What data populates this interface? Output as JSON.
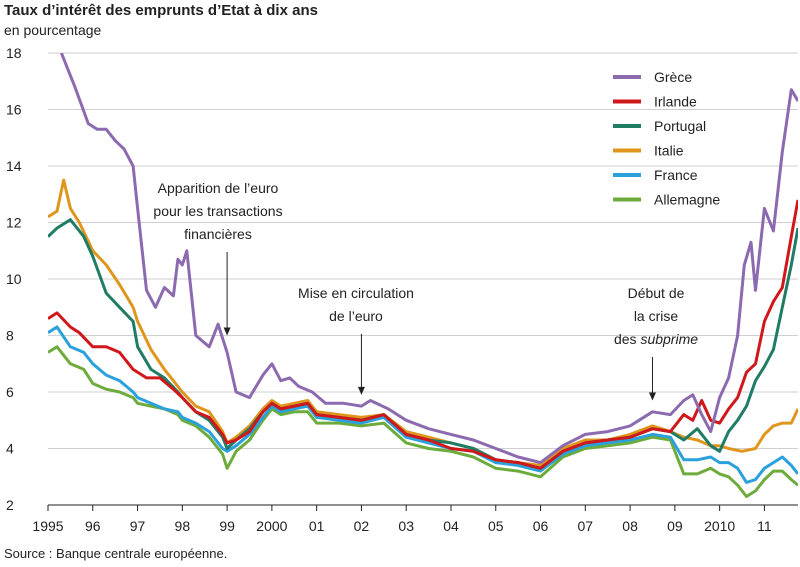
{
  "chart_data": {
    "type": "line",
    "title": "Taux d’intérêt des emprunts d’Etat à dix ans",
    "subtitle": "en pourcentage",
    "source": "Source : Banque centrale européenne.",
    "ylim": [
      2,
      18
    ],
    "xlim": [
      1995,
      2011.75
    ],
    "yticks": [
      2,
      4,
      6,
      8,
      10,
      12,
      14,
      16,
      18
    ],
    "xticks": [
      {
        "x": 1995,
        "label": "1995"
      },
      {
        "x": 1996,
        "label": "96"
      },
      {
        "x": 1997,
        "label": "97"
      },
      {
        "x": 1998,
        "label": "98"
      },
      {
        "x": 1999,
        "label": "99"
      },
      {
        "x": 2000,
        "label": "2000"
      },
      {
        "x": 2001,
        "label": "01"
      },
      {
        "x": 2002,
        "label": "02"
      },
      {
        "x": 2003,
        "label": "03"
      },
      {
        "x": 2004,
        "label": "04"
      },
      {
        "x": 2005,
        "label": "05"
      },
      {
        "x": 2006,
        "label": "06"
      },
      {
        "x": 2007,
        "label": "07"
      },
      {
        "x": 2008,
        "label": "08"
      },
      {
        "x": 2009,
        "label": "09"
      },
      {
        "x": 2010,
        "label": "2010"
      },
      {
        "x": 2011,
        "label": "11"
      }
    ],
    "grid": true,
    "legend_position": "top-right",
    "series": [
      {
        "name": "Grèce",
        "color": "#8b6ab0",
        "x": [
          1995.3,
          1995.6,
          1995.9,
          1996.1,
          1996.3,
          1996.5,
          1996.7,
          1996.9,
          1997.0,
          1997.2,
          1997.4,
          1997.6,
          1997.8,
          1997.9,
          1998.0,
          1998.1,
          1998.3,
          1998.6,
          1998.8,
          1999.0,
          1999.2,
          1999.5,
          1999.8,
          2000.0,
          2000.2,
          2000.4,
          2000.6,
          2000.9,
          2001.2,
          2001.6,
          2002.0,
          2002.2,
          2002.6,
          2003.0,
          2003.5,
          2004.0,
          2004.5,
          2005.0,
          2005.5,
          2006.0,
          2006.5,
          2007.0,
          2007.5,
          2008.0,
          2008.5,
          2008.9,
          2009.2,
          2009.4,
          2009.6,
          2009.8,
          2010.0,
          2010.2,
          2010.4,
          2010.55,
          2010.7,
          2010.8,
          2011.0,
          2011.2,
          2011.4,
          2011.6,
          2011.75
        ],
        "y": [
          18.0,
          16.8,
          15.5,
          15.3,
          15.3,
          14.9,
          14.6,
          14.0,
          12.5,
          9.6,
          9.0,
          9.7,
          9.4,
          10.7,
          10.5,
          11.0,
          8.0,
          7.6,
          8.4,
          7.4,
          6.0,
          5.8,
          6.6,
          7.0,
          6.4,
          6.5,
          6.2,
          6.0,
          5.6,
          5.6,
          5.5,
          5.7,
          5.4,
          5.0,
          4.7,
          4.5,
          4.3,
          4.0,
          3.7,
          3.5,
          4.1,
          4.5,
          4.6,
          4.8,
          5.3,
          5.2,
          5.7,
          5.9,
          5.2,
          4.6,
          5.8,
          6.5,
          8.0,
          10.5,
          11.3,
          9.6,
          12.5,
          11.7,
          14.5,
          16.7,
          16.3
        ]
      },
      {
        "name": "Irlande",
        "color": "#d0171b",
        "x": [
          1995.0,
          1995.2,
          1995.5,
          1995.7,
          1996.0,
          1996.3,
          1996.6,
          1996.9,
          1997.2,
          1997.5,
          1997.8,
          1998.0,
          1998.3,
          1998.6,
          1998.9,
          1999.0,
          1999.2,
          1999.5,
          1999.8,
          2000.0,
          2000.2,
          2000.5,
          2000.8,
          2001.0,
          2001.5,
          2002.0,
          2002.5,
          2003.0,
          2003.5,
          2004.0,
          2004.5,
          2005.0,
          2005.5,
          2006.0,
          2006.5,
          2007.0,
          2007.5,
          2008.0,
          2008.5,
          2008.9,
          2009.2,
          2009.4,
          2009.6,
          2009.8,
          2010.0,
          2010.2,
          2010.4,
          2010.6,
          2010.8,
          2011.0,
          2011.2,
          2011.4,
          2011.6,
          2011.75
        ],
        "y": [
          8.6,
          8.8,
          8.3,
          8.1,
          7.6,
          7.6,
          7.4,
          6.8,
          6.5,
          6.5,
          6.1,
          5.8,
          5.3,
          5.1,
          4.5,
          4.2,
          4.3,
          4.6,
          5.3,
          5.6,
          5.4,
          5.5,
          5.6,
          5.2,
          5.1,
          5.0,
          5.2,
          4.5,
          4.3,
          4.0,
          3.9,
          3.6,
          3.5,
          3.3,
          3.9,
          4.2,
          4.3,
          4.4,
          4.7,
          4.6,
          5.2,
          5.0,
          5.7,
          5.0,
          4.9,
          5.4,
          5.8,
          6.7,
          7.0,
          8.5,
          9.2,
          9.7,
          11.5,
          12.8
        ]
      },
      {
        "name": "Portugal",
        "color": "#1f7c65",
        "x": [
          1995.0,
          1995.2,
          1995.5,
          1995.8,
          1996.0,
          1996.3,
          1996.6,
          1996.9,
          1997.0,
          1997.3,
          1997.6,
          1997.9,
          1998.0,
          1998.3,
          1998.6,
          1998.9,
          1999.0,
          1999.2,
          1999.5,
          1999.8,
          2000.0,
          2000.2,
          2000.5,
          2000.8,
          2001.0,
          2001.5,
          2002.0,
          2002.5,
          2003.0,
          2003.5,
          2004.0,
          2004.5,
          2005.0,
          2005.5,
          2006.0,
          2006.5,
          2007.0,
          2007.5,
          2008.0,
          2008.5,
          2008.9,
          2009.2,
          2009.5,
          2009.8,
          2010.0,
          2010.2,
          2010.4,
          2010.6,
          2010.8,
          2011.0,
          2011.2,
          2011.4,
          2011.6,
          2011.75
        ],
        "y": [
          11.5,
          11.8,
          12.1,
          11.5,
          10.8,
          9.5,
          9.0,
          8.5,
          7.6,
          6.8,
          6.5,
          6.0,
          5.8,
          5.3,
          5.0,
          4.4,
          4.0,
          4.3,
          4.7,
          5.3,
          5.6,
          5.4,
          5.5,
          5.6,
          5.2,
          5.1,
          5.0,
          5.2,
          4.5,
          4.3,
          4.2,
          4.0,
          3.6,
          3.5,
          3.3,
          3.9,
          4.2,
          4.3,
          4.4,
          4.7,
          4.6,
          4.3,
          4.7,
          4.1,
          3.9,
          4.6,
          5.0,
          5.5,
          6.4,
          6.9,
          7.5,
          9.0,
          10.5,
          11.8
        ]
      },
      {
        "name": "Italie",
        "color": "#e0961d",
        "x": [
          1995.0,
          1995.2,
          1995.35,
          1995.5,
          1995.7,
          1996.0,
          1996.3,
          1996.6,
          1996.9,
          1997.0,
          1997.3,
          1997.6,
          1997.9,
          1998.0,
          1998.3,
          1998.6,
          1998.9,
          1999.0,
          1999.2,
          1999.5,
          1999.8,
          2000.0,
          2000.2,
          2000.5,
          2000.8,
          2001.0,
          2001.5,
          2002.0,
          2002.5,
          2003.0,
          2003.5,
          2004.0,
          2004.5,
          2005.0,
          2005.5,
          2006.0,
          2006.5,
          2007.0,
          2007.5,
          2008.0,
          2008.5,
          2008.9,
          2009.2,
          2009.5,
          2009.8,
          2010.0,
          2010.2,
          2010.5,
          2010.8,
          2011.0,
          2011.2,
          2011.4,
          2011.6,
          2011.75
        ],
        "y": [
          12.2,
          12.4,
          13.5,
          12.5,
          12.0,
          11.0,
          10.5,
          9.8,
          9.0,
          8.5,
          7.5,
          6.8,
          6.2,
          6.0,
          5.5,
          5.3,
          4.6,
          4.2,
          4.4,
          4.8,
          5.4,
          5.7,
          5.5,
          5.6,
          5.7,
          5.3,
          5.2,
          5.1,
          5.2,
          4.6,
          4.4,
          4.2,
          4.0,
          3.6,
          3.5,
          3.4,
          4.0,
          4.3,
          4.3,
          4.5,
          4.8,
          4.6,
          4.4,
          4.3,
          4.1,
          4.1,
          4.0,
          3.9,
          4.0,
          4.5,
          4.8,
          4.9,
          4.9,
          5.4
        ]
      },
      {
        "name": "France",
        "color": "#2aa0dc",
        "x": [
          1995.0,
          1995.2,
          1995.5,
          1995.8,
          1996.0,
          1996.3,
          1996.6,
          1996.9,
          1997.0,
          1997.3,
          1997.6,
          1997.9,
          1998.0,
          1998.3,
          1998.6,
          1998.9,
          1999.0,
          1999.2,
          1999.5,
          1999.8,
          2000.0,
          2000.2,
          2000.5,
          2000.8,
          2001.0,
          2001.5,
          2002.0,
          2002.5,
          2003.0,
          2003.5,
          2004.0,
          2004.5,
          2005.0,
          2005.5,
          2006.0,
          2006.5,
          2007.0,
          2007.5,
          2008.0,
          2008.5,
          2008.9,
          2009.2,
          2009.5,
          2009.8,
          2010.0,
          2010.2,
          2010.4,
          2010.6,
          2010.8,
          2011.0,
          2011.2,
          2011.4,
          2011.6,
          2011.75
        ],
        "y": [
          8.1,
          8.3,
          7.6,
          7.4,
          7.0,
          6.6,
          6.4,
          6.0,
          5.8,
          5.6,
          5.4,
          5.3,
          5.1,
          4.9,
          4.6,
          4.0,
          3.9,
          4.1,
          4.5,
          5.1,
          5.5,
          5.3,
          5.4,
          5.5,
          5.1,
          5.0,
          4.9,
          5.1,
          4.4,
          4.2,
          4.0,
          3.9,
          3.5,
          3.4,
          3.2,
          3.8,
          4.1,
          4.2,
          4.3,
          4.5,
          4.4,
          3.6,
          3.6,
          3.7,
          3.5,
          3.5,
          3.3,
          2.8,
          2.9,
          3.3,
          3.5,
          3.7,
          3.4,
          3.1
        ]
      },
      {
        "name": "Allemagne",
        "color": "#6dac3c",
        "x": [
          1995.0,
          1995.2,
          1995.5,
          1995.8,
          1996.0,
          1996.3,
          1996.6,
          1996.9,
          1997.0,
          1997.3,
          1997.6,
          1997.9,
          1998.0,
          1998.3,
          1998.6,
          1998.9,
          1999.0,
          1999.2,
          1999.5,
          1999.8,
          2000.0,
          2000.2,
          2000.5,
          2000.8,
          2001.0,
          2001.5,
          2002.0,
          2002.5,
          2003.0,
          2003.5,
          2004.0,
          2004.5,
          2005.0,
          2005.5,
          2006.0,
          2006.5,
          2007.0,
          2007.5,
          2008.0,
          2008.5,
          2008.9,
          2009.2,
          2009.5,
          2009.8,
          2010.0,
          2010.2,
          2010.4,
          2010.6,
          2010.8,
          2011.0,
          2011.2,
          2011.4,
          2011.6,
          2011.75
        ],
        "y": [
          7.4,
          7.6,
          7.0,
          6.8,
          6.3,
          6.1,
          6.0,
          5.8,
          5.6,
          5.5,
          5.4,
          5.2,
          5.0,
          4.8,
          4.4,
          3.8,
          3.3,
          3.9,
          4.3,
          5.0,
          5.4,
          5.2,
          5.3,
          5.3,
          4.9,
          4.9,
          4.8,
          4.9,
          4.2,
          4.0,
          3.9,
          3.7,
          3.3,
          3.2,
          3.0,
          3.7,
          4.0,
          4.1,
          4.2,
          4.4,
          4.3,
          3.1,
          3.1,
          3.3,
          3.1,
          3.0,
          2.7,
          2.3,
          2.5,
          2.9,
          3.2,
          3.2,
          2.9,
          2.7
        ]
      }
    ],
    "annotations": [
      {
        "lines": [
          "Apparition de l’euro",
          "pour les transactions",
          "financières"
        ],
        "arrow_x": 1999.0,
        "arrow_y": 8.0
      },
      {
        "lines": [
          "Mise en circulation",
          "de l’euro"
        ],
        "arrow_x": 2002.0,
        "arrow_y": 5.9
      },
      {
        "lines": [
          "Début de",
          "la crise",
          "des subprime"
        ],
        "arrow_x": 2008.5,
        "arrow_y": 5.7
      }
    ]
  }
}
